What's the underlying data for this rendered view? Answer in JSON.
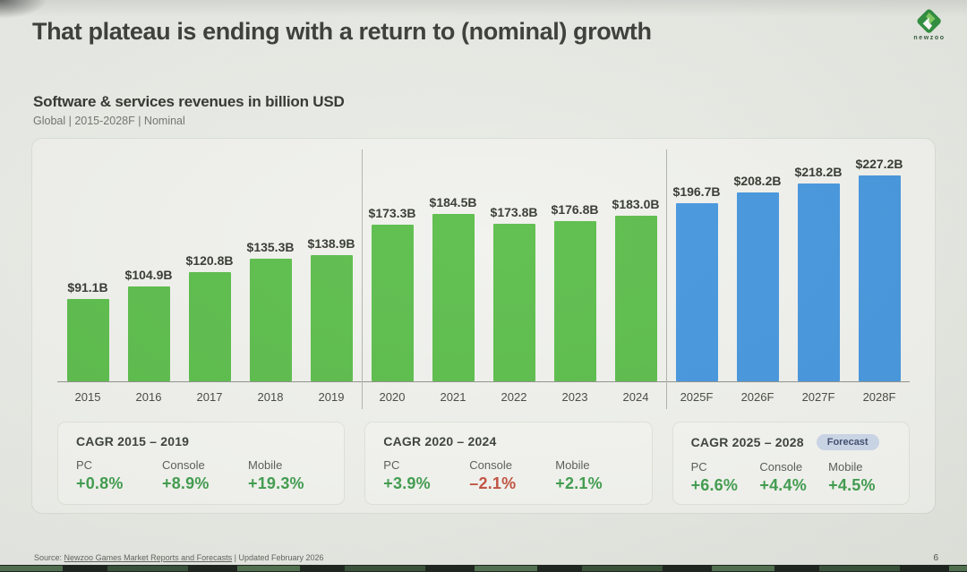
{
  "header": {
    "title": "That plateau is ending with a return to (nominal) growth",
    "logo_wordmark": "newzoo"
  },
  "chart_header": {
    "heading": "Software & services revenues in billion USD",
    "meta": "Global | 2015-2028F | Nominal"
  },
  "chart_data": {
    "type": "bar",
    "title": "Software & services revenues in billion USD",
    "subtitle": "Global | 2015-2028F | Nominal",
    "unit": "billion USD",
    "ylim": [
      0,
      240
    ],
    "grid": false,
    "categories": [
      "2015",
      "2016",
      "2017",
      "2018",
      "2019",
      "2020",
      "2021",
      "2022",
      "2023",
      "2024",
      "2025F",
      "2026F",
      "2027F",
      "2028F"
    ],
    "values": [
      91.1,
      104.9,
      120.8,
      135.3,
      138.9,
      173.3,
      184.5,
      173.8,
      176.8,
      183.0,
      196.7,
      208.2,
      218.2,
      227.2
    ],
    "value_labels": [
      "$91.1B",
      "$104.9B",
      "$120.8B",
      "$135.3B",
      "$138.9B",
      "$173.3B",
      "$184.5B",
      "$173.8B",
      "$176.8B",
      "$183.0B",
      "$196.7B",
      "$208.2B",
      "$218.2B",
      "$227.2B"
    ],
    "bar_types": [
      "actual",
      "actual",
      "actual",
      "actual",
      "actual",
      "actual",
      "actual",
      "actual",
      "actual",
      "actual",
      "forecast",
      "forecast",
      "forecast",
      "forecast"
    ],
    "group_dividers_after_index": [
      4,
      9
    ]
  },
  "cagr_cards": [
    {
      "title": "CAGR 2015 – 2019",
      "badge": "",
      "stats": [
        {
          "label": "PC",
          "value": "+0.8%",
          "tone": "positive"
        },
        {
          "label": "Console",
          "value": "+8.9%",
          "tone": "positive"
        },
        {
          "label": "Mobile",
          "value": "+19.3%",
          "tone": "positive"
        }
      ]
    },
    {
      "title": "CAGR 2020 – 2024",
      "badge": "",
      "stats": [
        {
          "label": "PC",
          "value": "+3.9%",
          "tone": "positive"
        },
        {
          "label": "Console",
          "value": "–2.1%",
          "tone": "negative"
        },
        {
          "label": "Mobile",
          "value": "+2.1%",
          "tone": "positive"
        }
      ]
    },
    {
      "title": "CAGR 2025 – 2028",
      "badge": "Forecast",
      "stats": [
        {
          "label": "PC",
          "value": "+6.6%",
          "tone": "positive"
        },
        {
          "label": "Console",
          "value": "+4.4%",
          "tone": "positive"
        },
        {
          "label": "Mobile",
          "value": "+4.5%",
          "tone": "positive"
        }
      ]
    }
  ],
  "colors": {
    "bar_actual": "#5bbd4a",
    "bar_forecast": "#4596de",
    "positive": "#3f9e4e",
    "negative": "#c4503f",
    "badge_bg": "#cdd8ea",
    "badge_text": "#3f4e6e"
  },
  "footer": {
    "source_prefix": "Source:",
    "source_link": "Newzoo Games Market Reports and Forecasts",
    "source_suffix": "| Updated February 2026",
    "page_number": "6"
  }
}
